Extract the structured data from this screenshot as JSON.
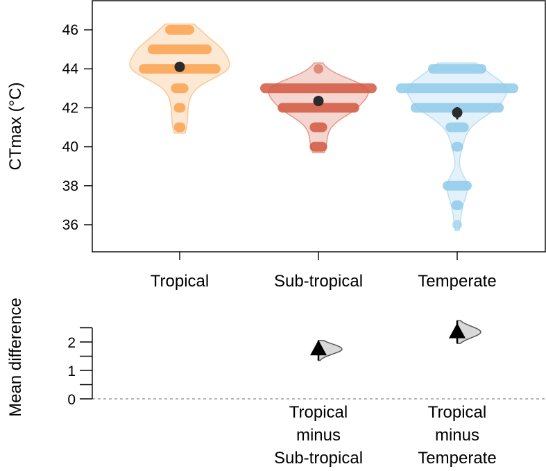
{
  "chart_data": [
    {
      "type": "violin",
      "ylabel": "CTmax (°C)",
      "ylim": [
        35,
        47.5
      ],
      "yticks": [
        36,
        38,
        40,
        42,
        44,
        46
      ],
      "categories": [
        "Tropical",
        "Sub-tropical",
        "Temperate"
      ],
      "colors": [
        "#f9a24f",
        "#d2583f",
        "#8fcaea"
      ],
      "point_summary": {
        "marker": "mean with error bar",
        "color": "#2b2b2b"
      },
      "series": [
        {
          "category": "Tropical",
          "mean": 44.1,
          "ci": [
            43.9,
            44.35
          ],
          "observations": [
            {
              "value": 46,
              "count": 5
            },
            {
              "value": 45,
              "count": 11
            },
            {
              "value": 44,
              "count": 14
            },
            {
              "value": 43,
              "count": 3
            },
            {
              "value": 42,
              "count": 2
            },
            {
              "value": 41,
              "count": 2
            }
          ]
        },
        {
          "category": "Sub-tropical",
          "mean": 42.35,
          "ci": [
            42.25,
            42.45
          ],
          "observations": [
            {
              "value": 44,
              "count": 1
            },
            {
              "value": 43,
              "count": 20
            },
            {
              "value": 42,
              "count": 14
            },
            {
              "value": 41,
              "count": 3
            },
            {
              "value": 40,
              "count": 3
            }
          ]
        },
        {
          "category": "Temperate",
          "mean": 41.75,
          "ci": [
            41.4,
            42.05
          ],
          "observations": [
            {
              "value": 44,
              "count": 10
            },
            {
              "value": 43,
              "count": 21
            },
            {
              "value": 42,
              "count": 16
            },
            {
              "value": 41,
              "count": 4
            },
            {
              "value": 40,
              "count": 2
            },
            {
              "value": 38,
              "count": 5
            },
            {
              "value": 37,
              "count": 2
            },
            {
              "value": 36,
              "count": 1
            }
          ]
        }
      ]
    },
    {
      "type": "scatter",
      "ylabel": "Mean difference",
      "ylim": [
        0,
        2.6
      ],
      "yticks": [
        0,
        1,
        2
      ],
      "yminorticks": [
        0.5,
        1.5,
        2.5
      ],
      "reference_line": 0,
      "comparisons": [
        {
          "label_lines": [
            "Tropical",
            "minus",
            "Sub-tropical"
          ],
          "category_index": 1,
          "estimate": 1.75,
          "ci": [
            1.35,
            2.05
          ]
        },
        {
          "label_lines": [
            "Tropical",
            "minus",
            "Temperate"
          ],
          "category_index": 2,
          "estimate": 2.35,
          "ci": [
            1.95,
            2.75
          ]
        }
      ]
    }
  ]
}
